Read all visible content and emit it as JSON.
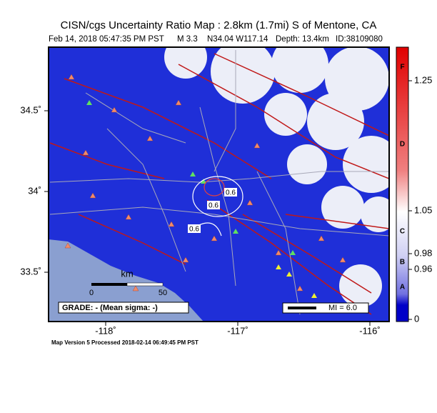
{
  "header": {
    "title": "CISN/cgs Uncertainty Ratio Map : 2.8km (1.7mi) S of Mentone, CA",
    "date": "Feb 14, 2018 05:47:35 PM PST",
    "magnitude": "M 3.3",
    "location": "N34.04 W117.14",
    "depth": "Depth: 13.4km",
    "id": "ID:38109080"
  },
  "map": {
    "lat_ticks": [
      {
        "value": 34.5,
        "label": "34.5˚"
      },
      {
        "value": 34,
        "label": "34˚"
      },
      {
        "value": 33.5,
        "label": "33.5˚"
      }
    ],
    "lon_ticks": [
      {
        "value": -118,
        "label": "-118˚"
      },
      {
        "value": -117,
        "label": "-117˚"
      },
      {
        "value": -116,
        "label": "-116˚"
      }
    ],
    "contour_labels": [
      "0.6",
      "0.6",
      "0.6"
    ],
    "scale": {
      "unit": "km",
      "start": "0",
      "end": "50"
    },
    "grade": "GRADE: - (Mean sigma: -)",
    "mi_legend": "MI = 6.0"
  },
  "colorbar": {
    "ticks": [
      1.25,
      1.05,
      0.98,
      0.96,
      0
    ],
    "grades": [
      "F",
      "D",
      "C",
      "B",
      "A"
    ]
  },
  "footer": "Map Version 5 Processed 2018-02-14 06:49:45 PM PST"
}
